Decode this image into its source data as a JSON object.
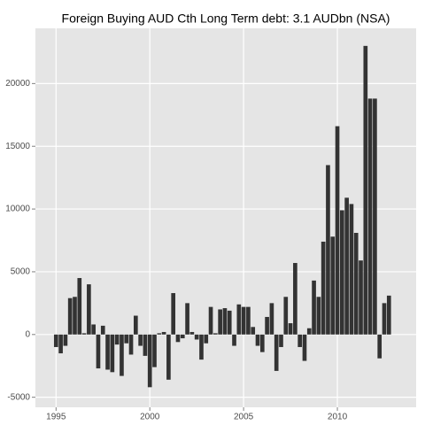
{
  "chart_data": {
    "type": "bar",
    "title": "Foreign Buying AUD Cth Long Term debt: 3.1 AUDbn (NSA)",
    "x": [
      1995,
      1995.25,
      1995.5,
      1995.75,
      1996,
      1996.25,
      1996.5,
      1996.75,
      1997,
      1997.25,
      1997.5,
      1997.75,
      1998,
      1998.25,
      1998.5,
      1998.75,
      1999,
      1999.25,
      1999.5,
      1999.75,
      2000,
      2000.25,
      2000.5,
      2000.75,
      2001,
      2001.25,
      2001.5,
      2001.75,
      2002,
      2002.25,
      2002.5,
      2002.75,
      2003,
      2003.25,
      2003.5,
      2003.75,
      2004,
      2004.25,
      2004.5,
      2004.75,
      2005,
      2005.25,
      2005.5,
      2005.75,
      2006,
      2006.25,
      2006.5,
      2006.75,
      2007,
      2007.25,
      2007.5,
      2007.75,
      2008,
      2008.25,
      2008.5,
      2008.75,
      2009,
      2009.25,
      2009.5,
      2009.75,
      2010,
      2010.25,
      2010.5,
      2010.75,
      2011,
      2011.25,
      2011.5,
      2011.75,
      2012,
      2012.25,
      2012.5,
      2012.75
    ],
    "values": [
      -1000,
      -1500,
      -900,
      2900,
      3000,
      4500,
      100,
      4000,
      800,
      -2700,
      700,
      -2800,
      -3000,
      -800,
      -3300,
      -700,
      -1600,
      1500,
      -900,
      -1700,
      -4200,
      -2600,
      100,
      200,
      -3600,
      3300,
      -600,
      -300,
      2500,
      200,
      -400,
      -2000,
      -700,
      2200,
      100,
      2000,
      2100,
      1900,
      -900,
      2400,
      2200,
      2200,
      600,
      -900,
      -1400,
      1400,
      2500,
      -2900,
      -1000,
      3000,
      900,
      5700,
      -1000,
      -2100,
      500,
      4300,
      3000,
      7400,
      13500,
      7800,
      16600,
      9900,
      10900,
      10400,
      8100,
      5900,
      23000,
      18800,
      18800,
      -1900,
      2500,
      3100
    ],
    "color": "#333333",
    "xlim": [
      1993.9,
      2014.2
    ],
    "xticks": [
      1995,
      2000,
      2005,
      2010
    ],
    "ylim": [
      -5800,
      24400
    ],
    "yticks": [
      -5000,
      0,
      5000,
      10000,
      15000,
      20000
    ],
    "grid": true
  }
}
